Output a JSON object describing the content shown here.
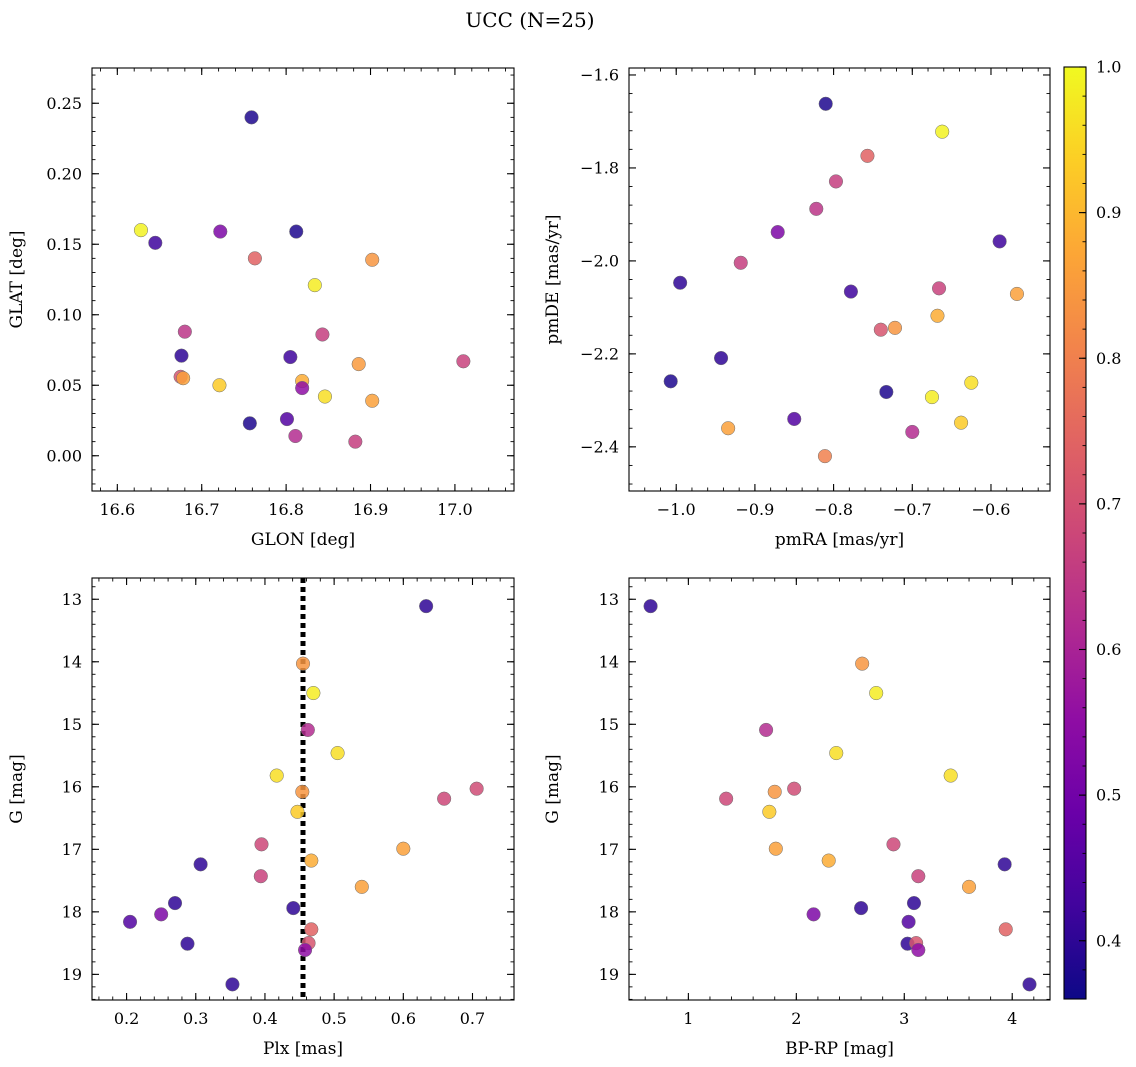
{
  "chart_data": {
    "suptitle": "UCC (N=25)",
    "colormap": "plasma",
    "colorbar": {
      "min": 0.36,
      "max": 1.0,
      "ticks": [
        {
          "value": 0.4,
          "label": "0.4"
        },
        {
          "value": 0.5,
          "label": "0.5"
        },
        {
          "value": 0.6,
          "label": "0.6"
        },
        {
          "value": 0.7,
          "label": "0.7"
        },
        {
          "value": 0.8,
          "label": "0.8"
        },
        {
          "value": 0.9,
          "label": "0.9"
        },
        {
          "value": 1.0,
          "label": "1.0"
        }
      ]
    },
    "panels": [
      {
        "type": "scatter",
        "xlabel": "GLON [deg]",
        "ylabel": "GLAT [deg]",
        "xlim": [
          16.57,
          17.07
        ],
        "ylim": [
          -0.025,
          0.275
        ],
        "xticks": [
          {
            "value": 16.6,
            "label": "16.6"
          },
          {
            "value": 16.7,
            "label": "16.7"
          },
          {
            "value": 16.8,
            "label": "16.8"
          },
          {
            "value": 16.9,
            "label": "16.9"
          },
          {
            "value": 17.0,
            "label": "17.0"
          }
        ],
        "yticks": [
          {
            "value": 0.0,
            "label": "0.00"
          },
          {
            "value": 0.05,
            "label": "0.05"
          },
          {
            "value": 0.1,
            "label": "0.10"
          },
          {
            "value": 0.15,
            "label": "0.15"
          },
          {
            "value": 0.2,
            "label": "0.20"
          },
          {
            "value": 0.25,
            "label": "0.25"
          }
        ],
        "points": [
          {
            "x": 16.759,
            "y": 0.24,
            "c": 0.38
          },
          {
            "x": 16.628,
            "y": 0.16,
            "c": 0.99
          },
          {
            "x": 16.645,
            "y": 0.151,
            "c": 0.42
          },
          {
            "x": 16.722,
            "y": 0.159,
            "c": 0.52
          },
          {
            "x": 16.812,
            "y": 0.159,
            "c": 0.38
          },
          {
            "x": 16.763,
            "y": 0.14,
            "c": 0.74
          },
          {
            "x": 16.902,
            "y": 0.139,
            "c": 0.84
          },
          {
            "x": 16.834,
            "y": 0.121,
            "c": 0.98
          },
          {
            "x": 16.68,
            "y": 0.088,
            "c": 0.64
          },
          {
            "x": 16.843,
            "y": 0.086,
            "c": 0.66
          },
          {
            "x": 16.676,
            "y": 0.071,
            "c": 0.4
          },
          {
            "x": 16.805,
            "y": 0.07,
            "c": 0.42
          },
          {
            "x": 17.01,
            "y": 0.067,
            "c": 0.67
          },
          {
            "x": 16.886,
            "y": 0.065,
            "c": 0.85
          },
          {
            "x": 16.675,
            "y": 0.056,
            "c": 0.71
          },
          {
            "x": 16.678,
            "y": 0.055,
            "c": 0.86
          },
          {
            "x": 16.819,
            "y": 0.053,
            "c": 0.88
          },
          {
            "x": 16.721,
            "y": 0.05,
            "c": 0.93
          },
          {
            "x": 16.819,
            "y": 0.048,
            "c": 0.55
          },
          {
            "x": 16.846,
            "y": 0.042,
            "c": 0.96
          },
          {
            "x": 16.902,
            "y": 0.039,
            "c": 0.86
          },
          {
            "x": 16.801,
            "y": 0.026,
            "c": 0.45
          },
          {
            "x": 16.757,
            "y": 0.023,
            "c": 0.38
          },
          {
            "x": 16.811,
            "y": 0.014,
            "c": 0.62
          },
          {
            "x": 16.882,
            "y": 0.01,
            "c": 0.66
          }
        ]
      },
      {
        "type": "scatter",
        "xlabel": "pmRA [mas/yr]",
        "ylabel": "pmDE [mas/yr]",
        "xlim": [
          -1.06,
          -0.525
        ],
        "ylim": [
          -2.495,
          -1.585
        ],
        "xticks": [
          {
            "value": -1.0,
            "label": "−1.0"
          },
          {
            "value": -0.9,
            "label": "−0.9"
          },
          {
            "value": -0.8,
            "label": "−0.8"
          },
          {
            "value": -0.7,
            "label": "−0.7"
          },
          {
            "value": -0.6,
            "label": "−0.6"
          }
        ],
        "yticks": [
          {
            "value": -2.4,
            "label": "−2.4"
          },
          {
            "value": -2.2,
            "label": "−2.2"
          },
          {
            "value": -2.0,
            "label": "−2.0"
          },
          {
            "value": -1.8,
            "label": "−1.8"
          },
          {
            "value": -1.6,
            "label": "−1.6"
          }
        ],
        "points": [
          {
            "x": -0.81,
            "y": -1.662,
            "c": 0.38
          },
          {
            "x": -0.662,
            "y": -1.722,
            "c": 0.99
          },
          {
            "x": -0.757,
            "y": -1.774,
            "c": 0.74
          },
          {
            "x": -0.797,
            "y": -1.829,
            "c": 0.66
          },
          {
            "x": -0.822,
            "y": -1.888,
            "c": 0.64
          },
          {
            "x": -0.871,
            "y": -1.938,
            "c": 0.52
          },
          {
            "x": -0.589,
            "y": -1.958,
            "c": 0.42
          },
          {
            "x": -0.918,
            "y": -2.004,
            "c": 0.66
          },
          {
            "x": -0.995,
            "y": -2.047,
            "c": 0.4
          },
          {
            "x": -0.666,
            "y": -2.059,
            "c": 0.67
          },
          {
            "x": -0.778,
            "y": -2.066,
            "c": 0.42
          },
          {
            "x": -0.567,
            "y": -2.071,
            "c": 0.86
          },
          {
            "x": -0.668,
            "y": -2.118,
            "c": 0.88
          },
          {
            "x": -0.722,
            "y": -2.144,
            "c": 0.84
          },
          {
            "x": -0.74,
            "y": -2.148,
            "c": 0.71
          },
          {
            "x": -0.943,
            "y": -2.209,
            "c": 0.4
          },
          {
            "x": -1.007,
            "y": -2.259,
            "c": 0.38
          },
          {
            "x": -0.625,
            "y": -2.262,
            "c": 0.96
          },
          {
            "x": -0.733,
            "y": -2.282,
            "c": 0.38
          },
          {
            "x": -0.675,
            "y": -2.293,
            "c": 0.98
          },
          {
            "x": -0.85,
            "y": -2.34,
            "c": 0.45
          },
          {
            "x": -0.638,
            "y": -2.348,
            "c": 0.93
          },
          {
            "x": -0.934,
            "y": -2.36,
            "c": 0.86
          },
          {
            "x": -0.7,
            "y": -2.368,
            "c": 0.62
          },
          {
            "x": -0.811,
            "y": -2.42,
            "c": 0.8
          }
        ]
      },
      {
        "type": "scatter",
        "xlabel": "Plx [mas]",
        "ylabel": "G [mag]",
        "xlim": [
          0.15,
          0.76
        ],
        "ylim": [
          19.41,
          12.66
        ],
        "y_inverted": true,
        "vline": {
          "x": 0.455,
          "style": "dotted",
          "color": "#000000"
        },
        "xticks": [
          {
            "value": 0.2,
            "label": "0.2"
          },
          {
            "value": 0.3,
            "label": "0.3"
          },
          {
            "value": 0.4,
            "label": "0.4"
          },
          {
            "value": 0.5,
            "label": "0.5"
          },
          {
            "value": 0.6,
            "label": "0.6"
          },
          {
            "value": 0.7,
            "label": "0.7"
          }
        ],
        "yticks": [
          {
            "value": 13,
            "label": "13"
          },
          {
            "value": 14,
            "label": "14"
          },
          {
            "value": 15,
            "label": "15"
          },
          {
            "value": 16,
            "label": "16"
          },
          {
            "value": 17,
            "label": "17"
          },
          {
            "value": 18,
            "label": "18"
          },
          {
            "value": 19,
            "label": "19"
          }
        ],
        "points": [
          {
            "x": 0.633,
            "y": 13.11,
            "c": 0.4
          },
          {
            "x": 0.455,
            "y": 14.03,
            "c": 0.84
          },
          {
            "x": 0.47,
            "y": 14.5,
            "c": 0.98
          },
          {
            "x": 0.462,
            "y": 15.09,
            "c": 0.62
          },
          {
            "x": 0.505,
            "y": 15.46,
            "c": 0.96
          },
          {
            "x": 0.417,
            "y": 15.82,
            "c": 0.96
          },
          {
            "x": 0.706,
            "y": 16.03,
            "c": 0.69
          },
          {
            "x": 0.454,
            "y": 16.08,
            "c": 0.84
          },
          {
            "x": 0.659,
            "y": 16.19,
            "c": 0.68
          },
          {
            "x": 0.447,
            "y": 16.4,
            "c": 0.93
          },
          {
            "x": 0.395,
            "y": 16.92,
            "c": 0.68
          },
          {
            "x": 0.6,
            "y": 16.99,
            "c": 0.86
          },
          {
            "x": 0.467,
            "y": 17.18,
            "c": 0.88
          },
          {
            "x": 0.307,
            "y": 17.24,
            "c": 0.4
          },
          {
            "x": 0.394,
            "y": 17.43,
            "c": 0.67
          },
          {
            "x": 0.54,
            "y": 17.6,
            "c": 0.86
          },
          {
            "x": 0.27,
            "y": 17.86,
            "c": 0.4
          },
          {
            "x": 0.441,
            "y": 17.94,
            "c": 0.4
          },
          {
            "x": 0.25,
            "y": 18.04,
            "c": 0.52
          },
          {
            "x": 0.205,
            "y": 18.16,
            "c": 0.45
          },
          {
            "x": 0.467,
            "y": 18.28,
            "c": 0.74
          },
          {
            "x": 0.288,
            "y": 18.51,
            "c": 0.4
          },
          {
            "x": 0.463,
            "y": 18.5,
            "c": 0.71
          },
          {
            "x": 0.458,
            "y": 18.61,
            "c": 0.55
          },
          {
            "x": 0.353,
            "y": 19.16,
            "c": 0.4
          }
        ]
      },
      {
        "type": "scatter",
        "xlabel": "BP-RP [mag]",
        "ylabel": "G [mag]",
        "xlim": [
          0.45,
          4.35
        ],
        "ylim": [
          19.41,
          12.66
        ],
        "y_inverted": true,
        "xticks": [
          {
            "value": 1,
            "label": "1"
          },
          {
            "value": 2,
            "label": "2"
          },
          {
            "value": 3,
            "label": "3"
          },
          {
            "value": 4,
            "label": "4"
          }
        ],
        "yticks": [
          {
            "value": 13,
            "label": "13"
          },
          {
            "value": 14,
            "label": "14"
          },
          {
            "value": 15,
            "label": "15"
          },
          {
            "value": 16,
            "label": "16"
          },
          {
            "value": 17,
            "label": "17"
          },
          {
            "value": 18,
            "label": "18"
          },
          {
            "value": 19,
            "label": "19"
          }
        ],
        "points": [
          {
            "x": 0.65,
            "y": 13.11,
            "c": 0.4
          },
          {
            "x": 2.61,
            "y": 14.03,
            "c": 0.84
          },
          {
            "x": 2.74,
            "y": 14.5,
            "c": 0.98
          },
          {
            "x": 1.72,
            "y": 15.09,
            "c": 0.62
          },
          {
            "x": 2.37,
            "y": 15.46,
            "c": 0.96
          },
          {
            "x": 3.43,
            "y": 15.82,
            "c": 0.96
          },
          {
            "x": 1.98,
            "y": 16.03,
            "c": 0.69
          },
          {
            "x": 1.8,
            "y": 16.08,
            "c": 0.84
          },
          {
            "x": 1.35,
            "y": 16.19,
            "c": 0.68
          },
          {
            "x": 1.75,
            "y": 16.4,
            "c": 0.93
          },
          {
            "x": 2.9,
            "y": 16.92,
            "c": 0.68
          },
          {
            "x": 1.81,
            "y": 16.99,
            "c": 0.86
          },
          {
            "x": 2.3,
            "y": 17.18,
            "c": 0.88
          },
          {
            "x": 3.93,
            "y": 17.24,
            "c": 0.4
          },
          {
            "x": 3.13,
            "y": 17.43,
            "c": 0.67
          },
          {
            "x": 3.6,
            "y": 17.6,
            "c": 0.86
          },
          {
            "x": 3.09,
            "y": 17.86,
            "c": 0.4
          },
          {
            "x": 2.6,
            "y": 17.94,
            "c": 0.4
          },
          {
            "x": 2.16,
            "y": 18.04,
            "c": 0.52
          },
          {
            "x": 3.04,
            "y": 18.16,
            "c": 0.45
          },
          {
            "x": 3.94,
            "y": 18.28,
            "c": 0.74
          },
          {
            "x": 3.03,
            "y": 18.51,
            "c": 0.4
          },
          {
            "x": 3.11,
            "y": 18.5,
            "c": 0.71
          },
          {
            "x": 3.13,
            "y": 18.61,
            "c": 0.55
          },
          {
            "x": 4.16,
            "y": 19.16,
            "c": 0.4
          }
        ]
      }
    ]
  }
}
